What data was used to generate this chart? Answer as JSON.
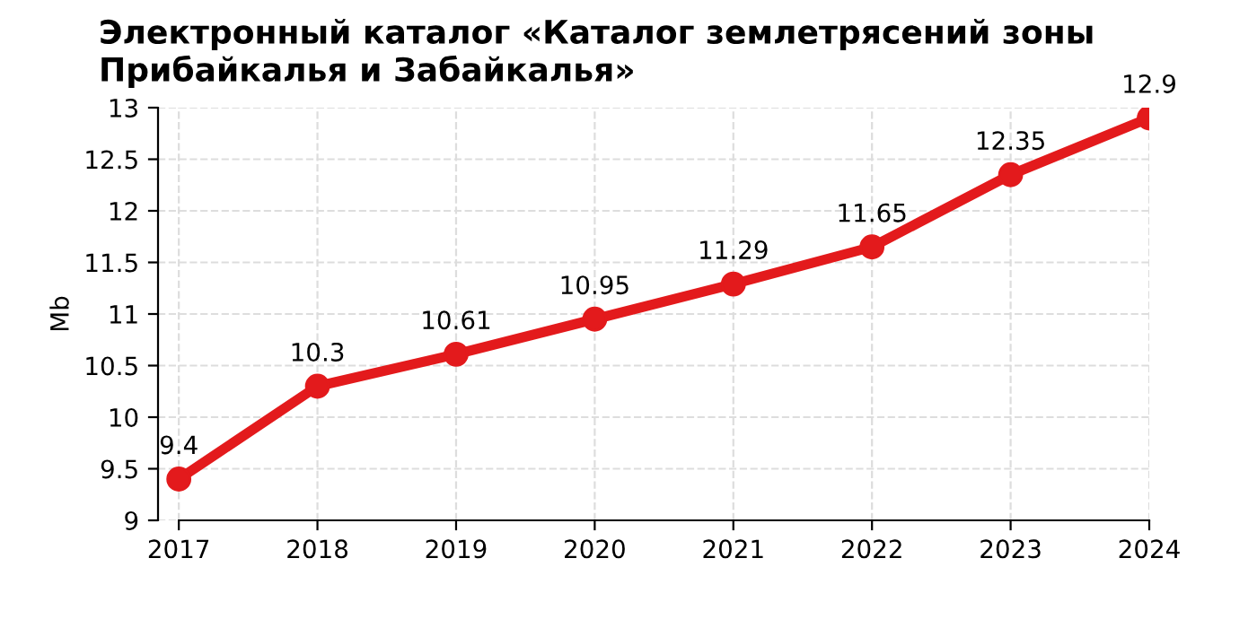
{
  "chart_data": {
    "type": "line",
    "title": "Электронный каталог «Каталог землетрясений зоны Прибайкалья и Забайкалья»",
    "ylabel": "Mb",
    "categories": [
      "2017",
      "2018",
      "2019",
      "2020",
      "2021",
      "2022",
      "2023",
      "2024"
    ],
    "series": [
      {
        "color": "#e31a1c",
        "values": [
          9.4,
          10.3,
          10.61,
          10.95,
          11.29,
          11.65,
          12.35,
          12.9
        ]
      }
    ],
    "ylim": [
      9,
      13
    ],
    "yticks": [
      9,
      9.5,
      10,
      10.5,
      11,
      11.5,
      12,
      12.5,
      13
    ],
    "grid": true,
    "marker": "circle",
    "line_style": "solid",
    "data_labels": true
  }
}
